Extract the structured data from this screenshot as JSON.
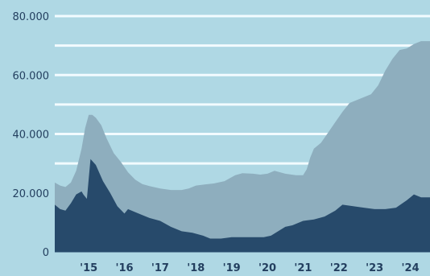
{
  "chart_data": {
    "type": "area",
    "stacking": "overlaid",
    "grid": true,
    "legend": "none",
    "colors": {
      "background": "#afd8e4",
      "gridline": "#f2fbff",
      "outer_area": "#8eaebe",
      "inner_area": "#274a6b",
      "text": "#233f5f"
    },
    "x_range": [
      2014.05,
      2024.55
    ],
    "ylim": [
      0,
      80000
    ],
    "y_ticks": [
      {
        "value": 0,
        "label": "0"
      },
      {
        "value": 20000,
        "label": "20.000"
      },
      {
        "value": 40000,
        "label": "40.000"
      },
      {
        "value": 60000,
        "label": "60.000"
      },
      {
        "value": 80000,
        "label": "80.000"
      }
    ],
    "gridlines": [
      20000,
      30000,
      40000,
      50000,
      60000,
      70000,
      80000
    ],
    "x_ticks": [
      {
        "value": 2015,
        "label": "'15"
      },
      {
        "value": 2016,
        "label": "'16"
      },
      {
        "value": 2017,
        "label": "'17"
      },
      {
        "value": 2018,
        "label": "'18"
      },
      {
        "value": 2019,
        "label": "'19"
      },
      {
        "value": 2020,
        "label": "'20"
      },
      {
        "value": 2021,
        "label": "'21"
      },
      {
        "value": 2022,
        "label": "'22"
      },
      {
        "value": 2023,
        "label": "'23"
      },
      {
        "value": 2024,
        "label": "'24"
      }
    ],
    "series": [
      {
        "color": "#8eaebe",
        "x": [
          2014.05,
          2014.2,
          2014.35,
          2014.5,
          2014.65,
          2014.8,
          2014.9,
          2015.0,
          2015.1,
          2015.2,
          2015.35,
          2015.5,
          2015.7,
          2015.9,
          2016.1,
          2016.3,
          2016.5,
          2016.7,
          2017.0,
          2017.3,
          2017.6,
          2017.8,
          2018.0,
          2018.2,
          2018.5,
          2018.8,
          2019.1,
          2019.3,
          2019.6,
          2019.8,
          2020.0,
          2020.2,
          2020.5,
          2020.8,
          2021.0,
          2021.1,
          2021.2,
          2021.3,
          2021.5,
          2021.7,
          2021.9,
          2022.1,
          2022.3,
          2022.5,
          2022.7,
          2022.9,
          2023.1,
          2023.3,
          2023.5,
          2023.7,
          2023.9,
          2024.1,
          2024.3,
          2024.55
        ],
        "values": [
          23500,
          22500,
          22000,
          23500,
          27500,
          35000,
          42000,
          46500,
          46500,
          45500,
          43000,
          38500,
          33500,
          30500,
          27000,
          24500,
          23000,
          22300,
          21500,
          21000,
          21000,
          21500,
          22500,
          22800,
          23200,
          24000,
          26000,
          26700,
          26500,
          26200,
          26500,
          27500,
          26500,
          26000,
          26000,
          28000,
          32000,
          35000,
          37000,
          40500,
          44000,
          47500,
          50500,
          51500,
          52500,
          53500,
          56500,
          61500,
          65500,
          68500,
          69000,
          70500,
          71500,
          71500
        ]
      },
      {
        "color": "#274a6b",
        "x": [
          2014.05,
          2014.2,
          2014.35,
          2014.5,
          2014.65,
          2014.8,
          2014.85,
          2014.95,
          2015.05,
          2015.2,
          2015.4,
          2015.6,
          2015.8,
          2016.0,
          2016.1,
          2016.3,
          2016.5,
          2016.7,
          2017.0,
          2017.3,
          2017.6,
          2017.9,
          2018.2,
          2018.4,
          2018.7,
          2019.0,
          2019.3,
          2019.6,
          2019.9,
          2020.1,
          2020.3,
          2020.5,
          2020.7,
          2021.0,
          2021.3,
          2021.6,
          2021.9,
          2022.1,
          2022.4,
          2022.7,
          2023.0,
          2023.3,
          2023.6,
          2023.9,
          2024.1,
          2024.3,
          2024.55
        ],
        "values": [
          16000,
          14500,
          14000,
          16500,
          19500,
          20500,
          19500,
          18000,
          31500,
          29500,
          24000,
          20000,
          15500,
          13000,
          14500,
          13500,
          12500,
          11500,
          10500,
          8500,
          7000,
          6500,
          5500,
          4500,
          4500,
          5000,
          5000,
          5000,
          5000,
          5500,
          7000,
          8500,
          9000,
          10500,
          11000,
          12000,
          14000,
          16000,
          15500,
          15000,
          14500,
          14500,
          15000,
          17500,
          19500,
          18500,
          18500
        ]
      }
    ]
  }
}
